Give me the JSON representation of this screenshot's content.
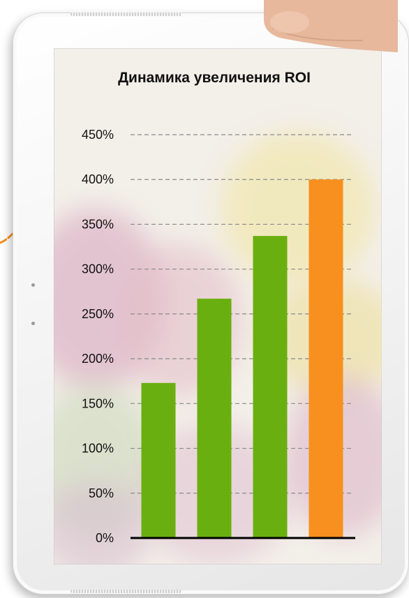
{
  "chart_data": {
    "type": "bar",
    "title": "Динамика увеличения ROI",
    "categories": [
      "",
      "",
      "",
      ""
    ],
    "values": [
      173,
      267,
      337,
      400
    ],
    "bar_colors": [
      "#6aaf10",
      "#6aaf10",
      "#6aaf10",
      "#f7901e"
    ],
    "ylim": [
      0,
      450
    ],
    "yticks": [
      "0%",
      "50%",
      "100%",
      "150%",
      "200%",
      "250%",
      "300%",
      "350%",
      "400%",
      "450%"
    ],
    "xlabel": "",
    "ylabel": "",
    "grid": "dashed horizontal",
    "legend": "none"
  },
  "colors": {
    "accent_orange": "#f7901e",
    "bar_green": "#6aaf10"
  }
}
